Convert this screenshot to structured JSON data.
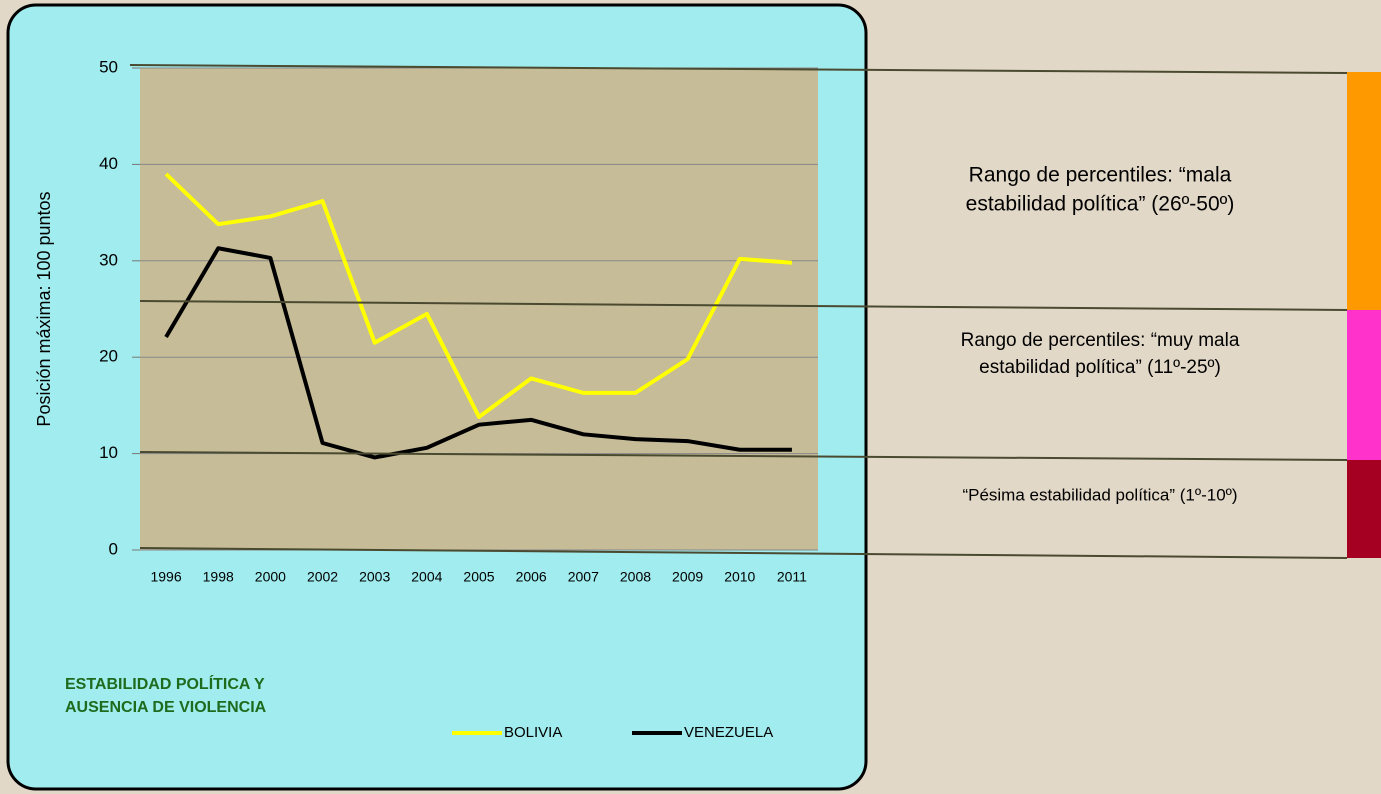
{
  "chart_data": {
    "type": "line",
    "title": [
      "ESTABILIDAD POLÍTICA Y",
      "AUSENCIA DE VIOLENCIA"
    ],
    "ylabel": "Posición máxima: 100 puntos",
    "categories": [
      "1996",
      "1998",
      "2000",
      "2002",
      "2003",
      "2004",
      "2005",
      "2006",
      "2007",
      "2008",
      "2009",
      "2010",
      "2011"
    ],
    "series": [
      {
        "name": "BOLIVIA",
        "color": "#ffff00",
        "values": [
          39,
          33.8,
          34.6,
          36.2,
          21.5,
          24.5,
          13.8,
          17.8,
          16.3,
          16.3,
          19.8,
          30.2,
          29.8
        ]
      },
      {
        "name": "VENEZUELA",
        "color": "#000000",
        "values": [
          22.1,
          31.3,
          30.3,
          11.1,
          9.6,
          10.6,
          13,
          13.5,
          12,
          11.5,
          11.3,
          10.4,
          10.4
        ]
      }
    ],
    "ylim": [
      0,
      50
    ],
    "yticks": [
      0,
      10,
      20,
      30,
      40,
      50
    ],
    "grid": true,
    "annotations": [
      [
        "Rango de percentiles: “mala",
        "estabilidad política” (26º-50º)"
      ],
      [
        "Rango de percentiles: “muy mala",
        "estabilidad política” (11º-25º)"
      ],
      [
        "“Pésima estabilidad política” (1º-10º)"
      ]
    ]
  }
}
